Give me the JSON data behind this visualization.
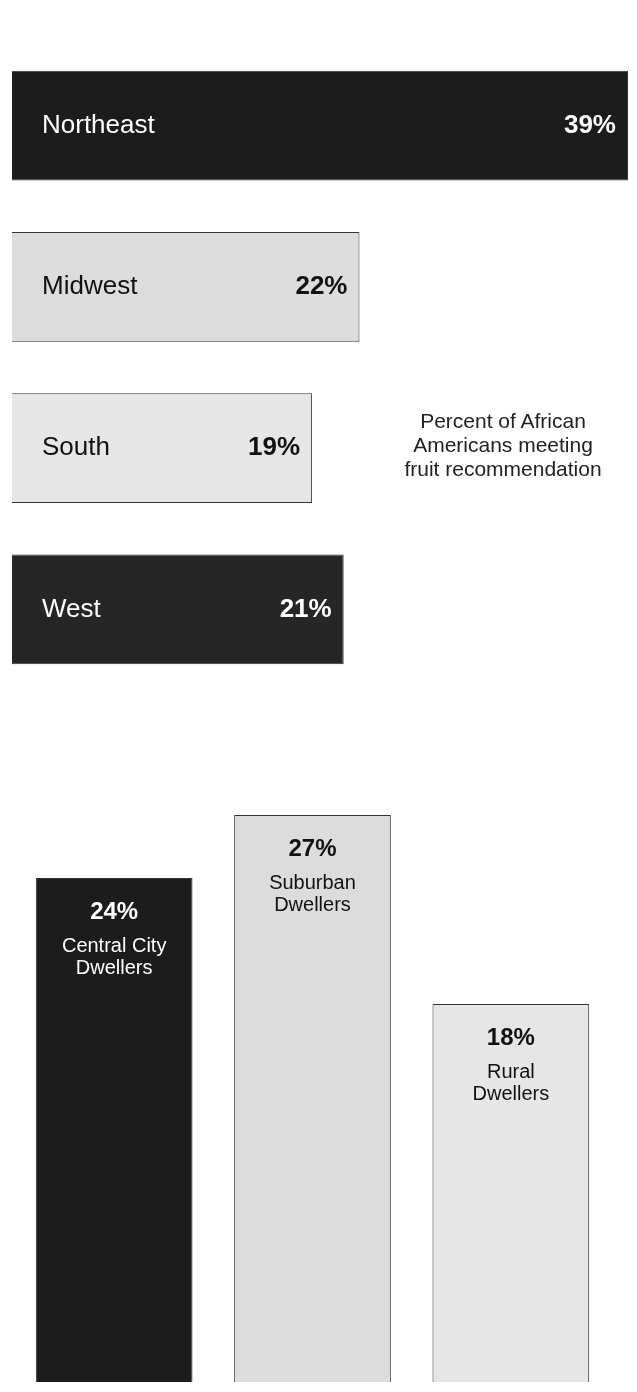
{
  "chart_data": [
    {
      "type": "bar",
      "orientation": "horizontal",
      "categories": [
        "Northeast",
        "Midwest",
        "South",
        "West"
      ],
      "values": [
        39,
        22,
        19,
        21
      ],
      "colors": [
        "#1c1c1c",
        "#dcdcdc",
        "#e6e6e6",
        "#262626"
      ],
      "value_labels": [
        "39%",
        "22%",
        "19%",
        "21%"
      ],
      "xlim": [
        0,
        39
      ],
      "tick_labels": false,
      "annotations": [
        "Percent of African Americans meeting fruit recommendation"
      ]
    },
    {
      "type": "bar",
      "categories": [
        "Central City Dwellers",
        "Suburban Dwellers",
        "Rural Dwellers"
      ],
      "values": [
        24,
        27,
        18
      ],
      "colors": [
        "#1c1c1c",
        "#dcdcdc",
        "#e6e6e6"
      ],
      "value_labels": [
        "24%",
        "27%",
        "18%"
      ],
      "ylim": [
        0,
        27
      ],
      "tick_labels": false
    }
  ]
}
